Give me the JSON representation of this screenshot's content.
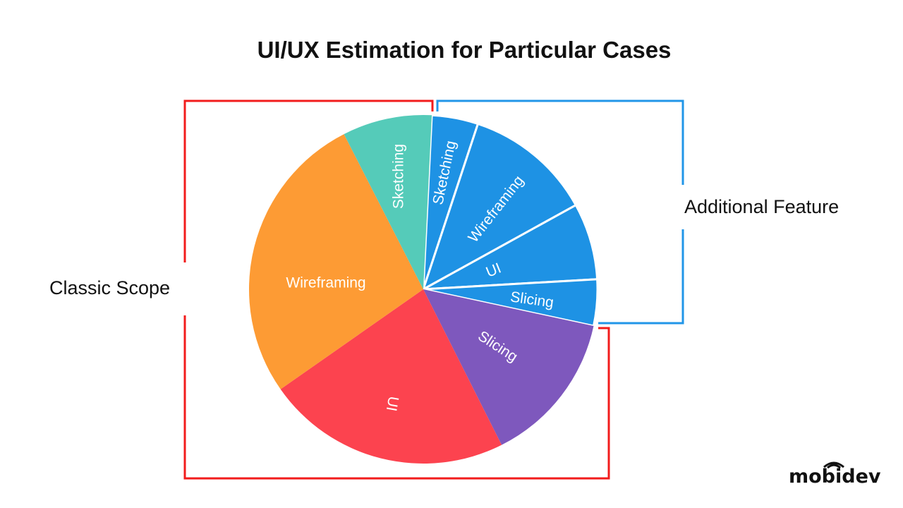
{
  "chart_data": {
    "type": "pie",
    "title": "UI/UX Estimation for Particular Cases",
    "groups": [
      {
        "name": "Classic Scope",
        "color": "#f21c1c"
      },
      {
        "name": "Additional Feature",
        "color": "#2196e8"
      }
    ],
    "slices": [
      {
        "label": "Sketching",
        "group": "Additional Feature",
        "value": 4.3,
        "color": "#1e92e4"
      },
      {
        "label": "Wireframing",
        "group": "Additional Feature",
        "value": 11.9,
        "color": "#1e92e4"
      },
      {
        "label": "UI",
        "group": "Additional Feature",
        "value": 7.1,
        "color": "#1e92e4"
      },
      {
        "label": "Slicing",
        "group": "Additional Feature",
        "value": 4.3,
        "color": "#1e92e4"
      },
      {
        "label": "Slicing",
        "group": "Classic Scope",
        "value": 14.2,
        "color": "#7e58bd"
      },
      {
        "label": "UI",
        "group": "Classic Scope",
        "value": 22.7,
        "color": "#fc434f"
      },
      {
        "label": "Wireframing",
        "group": "Classic Scope",
        "value": 27.2,
        "color": "#fd9b34"
      },
      {
        "label": "Sketching",
        "group": "Classic Scope",
        "value": 8.3,
        "color": "#55cbb9"
      }
    ]
  },
  "logo": "mobidev"
}
